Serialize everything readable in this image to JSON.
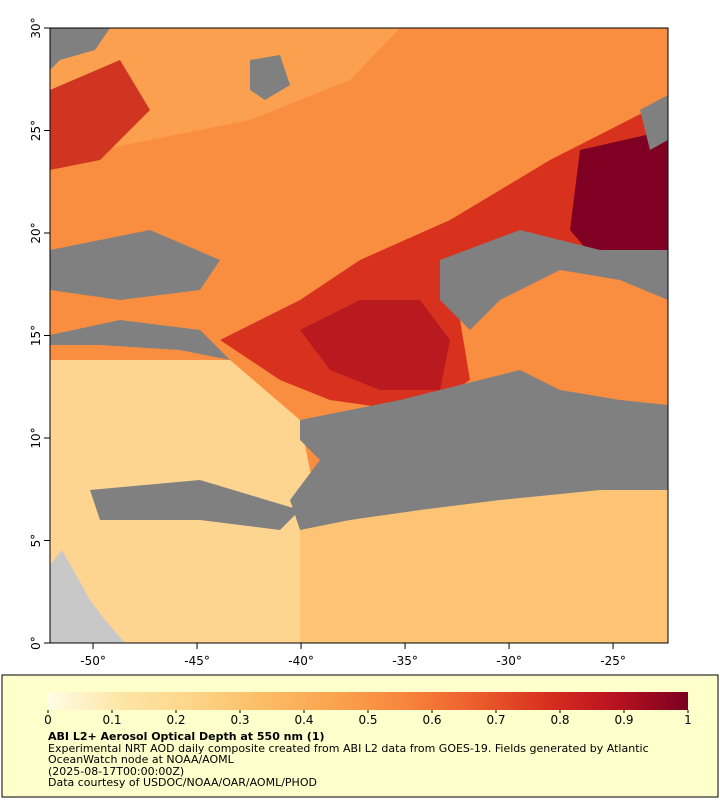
{
  "map": {
    "xlim": [
      -52.07,
      -22.36
    ],
    "ylim": [
      0,
      30
    ],
    "xticks": [
      {
        "value": -50,
        "label": "-50°"
      },
      {
        "value": -45,
        "label": "-45°"
      },
      {
        "value": -40,
        "label": "-40°"
      },
      {
        "value": -35,
        "label": "-35°"
      },
      {
        "value": -30,
        "label": "-30°"
      },
      {
        "value": -25,
        "label": "-25°"
      }
    ],
    "yticks": [
      {
        "value": 0,
        "label": "0°"
      },
      {
        "value": 5,
        "label": "5°"
      },
      {
        "value": 10,
        "label": "10°"
      },
      {
        "value": 15,
        "label": "15°"
      },
      {
        "value": 20,
        "label": "20°"
      },
      {
        "value": 25,
        "label": "25°"
      },
      {
        "value": 30,
        "label": "30°"
      }
    ]
  },
  "colorbar": {
    "range": [
      0,
      1
    ],
    "ticks": [
      0,
      0.1,
      0.2,
      0.3,
      0.4,
      0.5,
      0.6,
      0.7,
      0.8,
      0.9,
      1
    ],
    "colors": [
      "#fffde4",
      "#fde6a8",
      "#fdd68a",
      "#fcbd66",
      "#fba44e",
      "#f8863c",
      "#ec5e2c",
      "#d8301f",
      "#b81220",
      "#7a0020"
    ]
  },
  "legend": {
    "title": "ABI L2+ Aerosol Optical Depth at 550 nm (1)",
    "description": "Experimental NRT AOD daily composite created from ABI L2 data from GOES-19. Fields generated by Atlantic OceanWatch node at NOAA/AOML",
    "time": "(2025-08-17T00:00:00Z)",
    "credit": "Data courtesy of USDOC/NOAA/OAR/AOML/PHOD"
  }
}
